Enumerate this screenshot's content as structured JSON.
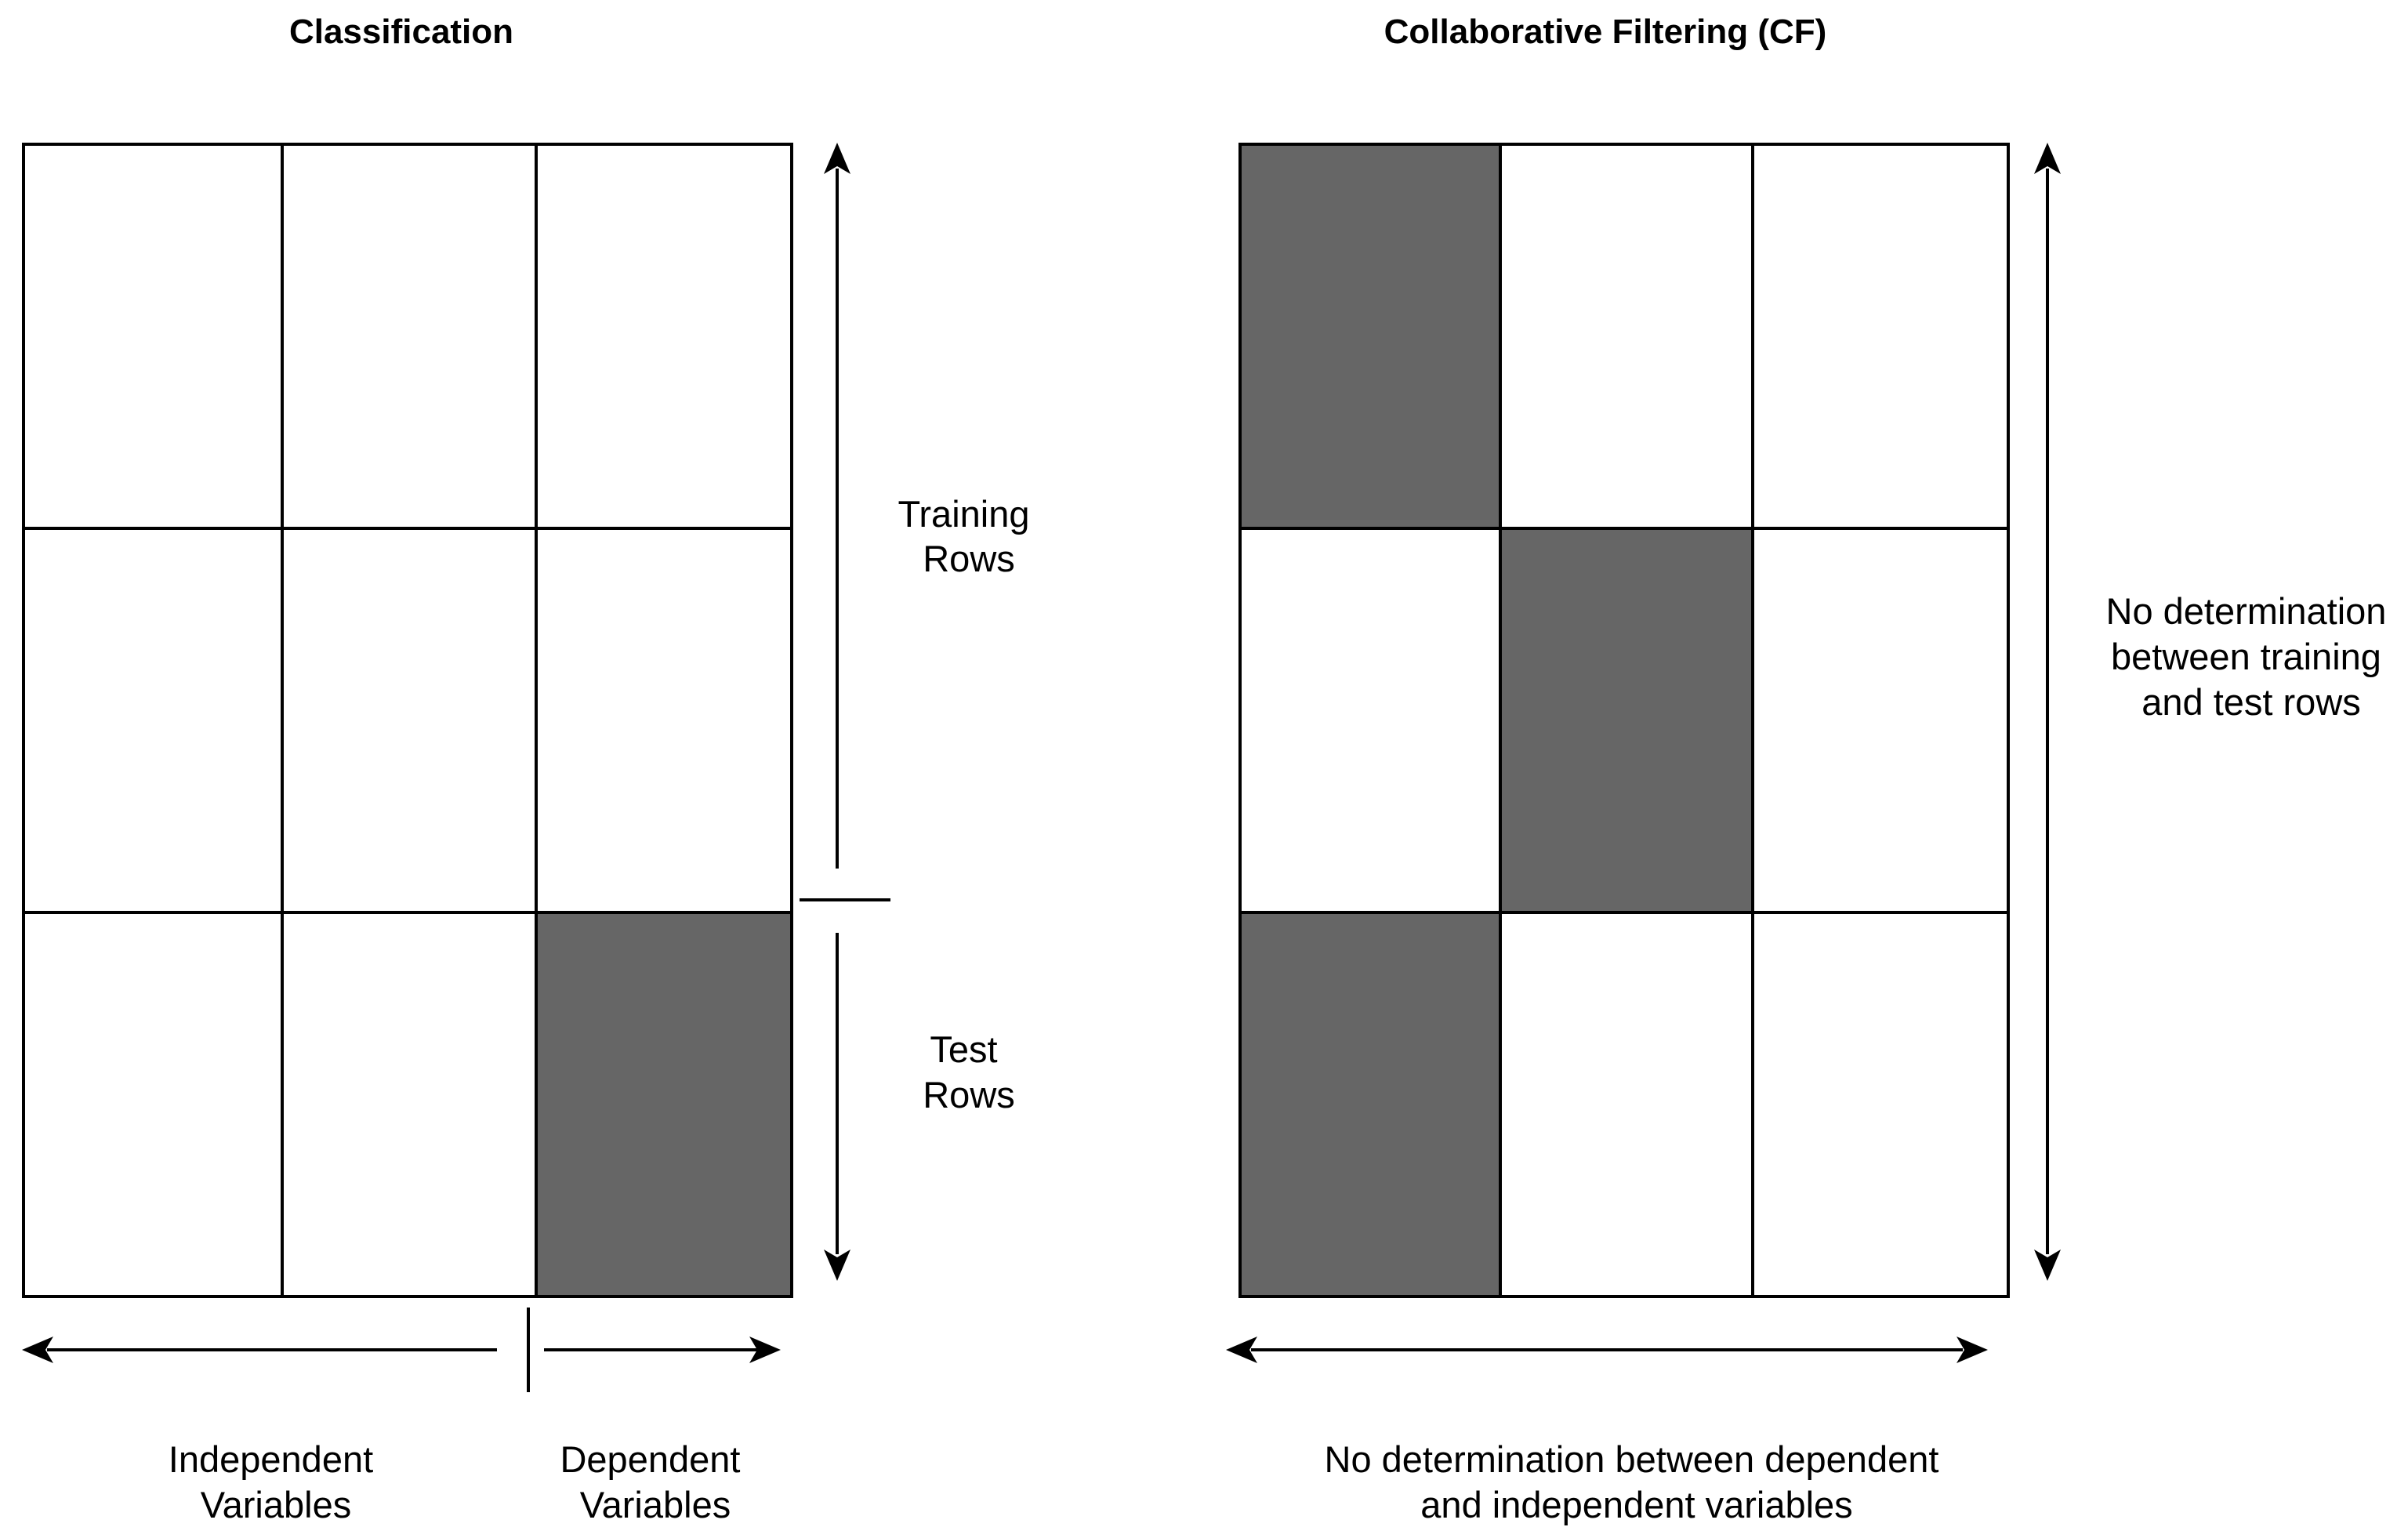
{
  "colors": {
    "filled_cell": "#666666",
    "empty_cell": "#ffffff",
    "stroke": "#000000"
  },
  "classification": {
    "title": "Classification",
    "training_label": [
      "Training",
      "Rows"
    ],
    "test_label": [
      "Test",
      "Rows"
    ],
    "independent_label": [
      "Independent",
      "Variables"
    ],
    "dependent_label": [
      "Dependent",
      "Variables"
    ],
    "filled": [
      [
        false,
        false,
        false
      ],
      [
        false,
        false,
        false
      ],
      [
        false,
        false,
        true
      ]
    ]
  },
  "cf": {
    "title": "Collaborative Filtering (CF)",
    "rows_label": [
      "No determination",
      "between training",
      "and test rows"
    ],
    "columns_label": [
      "No determination between dependent",
      "and independent variables"
    ],
    "filled": [
      [
        true,
        false,
        false
      ],
      [
        false,
        true,
        false
      ],
      [
        true,
        false,
        false
      ]
    ]
  }
}
